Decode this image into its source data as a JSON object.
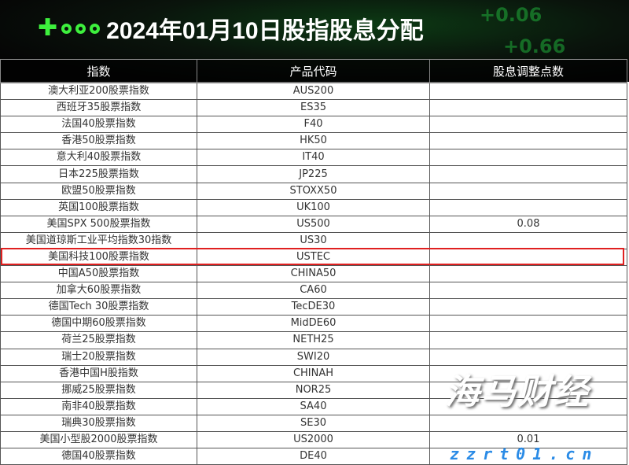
{
  "title": "2024年01月10日股指股息分配",
  "banner_decor": [
    "+0.06",
    "+0.66"
  ],
  "headers": [
    "指数",
    "产品代码",
    "股息调整点数"
  ],
  "rows": [
    [
      "澳大利亚200股票指数",
      "AUS200",
      ""
    ],
    [
      "西班牙35股票指数",
      "ES35",
      ""
    ],
    [
      "法国40股票指数",
      "F40",
      ""
    ],
    [
      "香港50股票指数",
      "HK50",
      ""
    ],
    [
      "意大利40股票指数",
      "IT40",
      ""
    ],
    [
      "日本225股票指数",
      "JP225",
      ""
    ],
    [
      "欧盟50股票指数",
      "STOXX50",
      ""
    ],
    [
      "英国100股票指数",
      "UK100",
      ""
    ],
    [
      "美国SPX 500股票指数",
      "US500",
      "0.08"
    ],
    [
      "美国道琼斯工业平均指数30指数",
      "US30",
      ""
    ],
    [
      "美国科技100股票指数",
      "USTEC",
      ""
    ],
    [
      "中国A50股票指数",
      "CHINA50",
      ""
    ],
    [
      "加拿大60股票指数",
      "CA60",
      ""
    ],
    [
      "德国Tech 30股票指数",
      "TecDE30",
      ""
    ],
    [
      "德国中期60股票指数",
      "MidDE60",
      ""
    ],
    [
      "荷兰25股票指数",
      "NETH25",
      ""
    ],
    [
      "瑞士20股票指数",
      "SWI20",
      ""
    ],
    [
      "香港中国H股指数",
      "CHINAH",
      ""
    ],
    [
      "挪威25股票指数",
      "NOR25",
      ""
    ],
    [
      "南非40股票指数",
      "SA40",
      ""
    ],
    [
      "瑞典30股票指数",
      "SE30",
      ""
    ],
    [
      "美国小型股2000股票指数",
      "US2000",
      "0.01"
    ],
    [
      "德国40股票指数",
      "DE40",
      ""
    ]
  ],
  "highlight_color": "#e02020",
  "watermark": {
    "name": "海马财经",
    "url": "zzrt01.cn"
  }
}
